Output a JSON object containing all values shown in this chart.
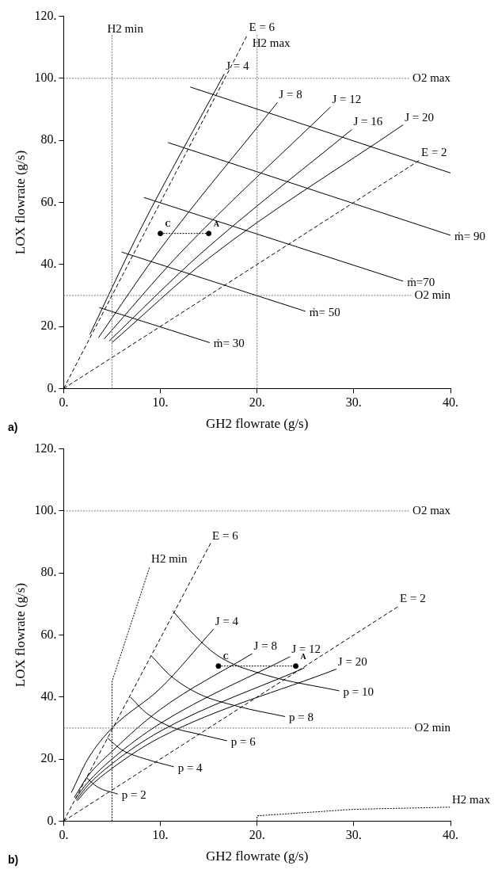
{
  "chart_data": [
    {
      "type": "line",
      "xlabel": "GH2 flowrate (g/s)",
      "ylabel": "LOX flowrate (g/s)",
      "xlim": [
        0,
        40
      ],
      "ylim": [
        0,
        120
      ],
      "xticks": [
        {
          "value": 0,
          "label": "0."
        },
        {
          "value": 10,
          "label": "10."
        },
        {
          "value": 20,
          "label": "20."
        },
        {
          "value": 30,
          "label": "30."
        },
        {
          "value": 40,
          "label": "40."
        }
      ],
      "yticks": [
        {
          "value": 0,
          "label": "0."
        },
        {
          "value": 20,
          "label": "20."
        },
        {
          "value": 40,
          "label": "40."
        },
        {
          "value": 60,
          "label": "60."
        },
        {
          "value": 80,
          "label": "80."
        },
        {
          "value": 100,
          "label": "100."
        },
        {
          "value": 120,
          "label": "120."
        }
      ],
      "marker": "none",
      "series": [
        {
          "name": "E = 6",
          "color": "#000000",
          "line_style": "dashed",
          "x": [
            0,
            19
          ],
          "values": [
            0,
            114
          ]
        },
        {
          "name": "E = 2",
          "color": "#000000",
          "line_style": "dashed",
          "x": [
            0,
            36.8
          ],
          "values": [
            0,
            73.6
          ]
        },
        {
          "name": "J = 4",
          "color": "#000000",
          "line_style": "solid",
          "x": [
            2.7,
            8,
            16.6
          ],
          "values": [
            17.4,
            51.7,
            101.4
          ]
        },
        {
          "name": "J = 8",
          "color": "#000000",
          "line_style": "solid",
          "x": [
            3.6,
            10,
            22.1
          ],
          "values": [
            16.4,
            45,
            92.2
          ]
        },
        {
          "name": "J = 12",
          "color": "#000000",
          "line_style": "solid",
          "x": [
            4.2,
            12,
            27.6
          ],
          "values": [
            16,
            43.5,
            90.8
          ]
        },
        {
          "name": "J = 16",
          "color": "#000000",
          "line_style": "solid",
          "x": [
            4.7,
            14,
            29.8
          ],
          "values": [
            15.3,
            43,
            83.5
          ]
        },
        {
          "name": "J = 20",
          "color": "#000000",
          "line_style": "solid",
          "x": [
            5,
            15,
            35.1
          ],
          "values": [
            14.8,
            42,
            85
          ]
        },
        {
          "name": "ṁ= 30",
          "color": "#000000",
          "line_style": "solid",
          "x": [
            3.7,
            15.1
          ],
          "values": [
            26.1,
            14.8
          ]
        },
        {
          "name": "ṁ= 50",
          "color": "#000000",
          "line_style": "solid",
          "x": [
            6,
            25
          ],
          "values": [
            44,
            24.9
          ]
        },
        {
          "name": "ṁ=70",
          "color": "#000000",
          "line_style": "solid",
          "x": [
            8.3,
            35.1
          ],
          "values": [
            61.6,
            34.6
          ]
        },
        {
          "name": "ṁ= 90",
          "color": "#000000",
          "line_style": "solid",
          "x": [
            10.8,
            40
          ],
          "values": [
            79.3,
            49.4
          ]
        },
        {
          "color": "#000000",
          "line_style": "solid",
          "x": [
            13.1,
            40
          ],
          "values": [
            97.2,
            69.5
          ]
        },
        {
          "color": "#000000",
          "line_style": "dotted",
          "marker": "circle",
          "x": [
            10,
            15
          ],
          "values": [
            50,
            50
          ]
        }
      ],
      "ref_lines": [
        {
          "axis": "x",
          "value": 5,
          "label": "H2 min"
        },
        {
          "axis": "x",
          "value": 20,
          "label": "H2 max"
        },
        {
          "axis": "y",
          "value": 100,
          "label": "O2 max"
        },
        {
          "axis": "y",
          "value": 30,
          "label": "O2 min"
        }
      ],
      "annotations": [
        {
          "text": "C",
          "x": 10,
          "y": 50
        },
        {
          "text": "A",
          "x": 15,
          "y": 50
        },
        "a)"
      ]
    },
    {
      "type": "line",
      "xlabel": "GH2 flowrate (g/s)",
      "ylabel": "LOX flowrate (g/s)",
      "xlim": [
        0,
        40
      ],
      "ylim": [
        0,
        120
      ],
      "xticks": [
        {
          "value": 0,
          "label": "0."
        },
        {
          "value": 10,
          "label": "10."
        },
        {
          "value": 20,
          "label": "20."
        },
        {
          "value": 30,
          "label": "30."
        },
        {
          "value": 40,
          "label": "40."
        }
      ],
      "yticks": [
        {
          "value": 0,
          "label": "0."
        },
        {
          "value": 20,
          "label": "20."
        },
        {
          "value": 40,
          "label": "40."
        },
        {
          "value": 60,
          "label": "60."
        },
        {
          "value": 80,
          "label": "80."
        },
        {
          "value": 100,
          "label": "100."
        },
        {
          "value": 120,
          "label": "120."
        }
      ],
      "marker": "none",
      "series": [
        {
          "name": "E = 6",
          "color": "#000000",
          "line_style": "dashed",
          "x": [
            0,
            15.2
          ],
          "values": [
            0,
            89.6
          ]
        },
        {
          "name": "E = 2",
          "color": "#000000",
          "line_style": "dashed",
          "x": [
            0,
            34.6
          ],
          "values": [
            0,
            69.2
          ]
        },
        {
          "name": "H2 min",
          "color": "#000000",
          "line_style": "dotted",
          "x": [
            5,
            5,
            8.9
          ],
          "values": [
            0,
            45,
            82
          ]
        },
        {
          "name": "H2 max",
          "color": "#000000",
          "line_style": "dotted",
          "x": [
            20,
            20,
            30,
            40
          ],
          "values": [
            0,
            1.7,
            3.8,
            4.5
          ]
        },
        {
          "name": "J = 4",
          "color": "#000000",
          "line_style": "solid",
          "x": [
            0.8,
            2.5,
            5,
            10,
            15.5
          ],
          "values": [
            9.2,
            20,
            30,
            42.8,
            61.9
          ]
        },
        {
          "name": "J = 8",
          "color": "#000000",
          "line_style": "solid",
          "x": [
            1.1,
            2.5,
            5,
            10,
            19.5
          ],
          "values": [
            7.6,
            14.5,
            22.5,
            36,
            54
          ]
        },
        {
          "name": "J = 12",
          "color": "#000000",
          "line_style": "solid",
          "x": [
            1.2,
            2.5,
            5,
            10,
            23.4
          ],
          "values": [
            7.2,
            12.5,
            20,
            31.5,
            53
          ]
        },
        {
          "color": "#000000",
          "line_style": "solid",
          "x": [
            1.3,
            2.5,
            5,
            10,
            24.9
          ],
          "values": [
            6.8,
            11.5,
            18.5,
            29,
            49.4
          ]
        },
        {
          "name": "J = 20",
          "color": "#000000",
          "line_style": "solid",
          "x": [
            1.4,
            2.5,
            5,
            10,
            28.2
          ],
          "values": [
            6.5,
            10.5,
            17,
            27,
            49
          ]
        },
        {
          "name": "p = 2",
          "color": "#000000",
          "line_style": "solid",
          "x": [
            2.4,
            3.5,
            5.6
          ],
          "values": [
            13.9,
            11,
            8.7
          ]
        },
        {
          "name": "p = 4",
          "color": "#000000",
          "line_style": "solid",
          "x": [
            4.5,
            6,
            8.5,
            11.4
          ],
          "values": [
            26.9,
            23,
            20,
            17.5
          ]
        },
        {
          "name": "p = 6",
          "color": "#000000",
          "line_style": "solid",
          "x": [
            6.9,
            8.5,
            11,
            14,
            16.9
          ],
          "values": [
            40,
            35,
            30.5,
            28,
            25.9
          ]
        },
        {
          "name": "p = 8",
          "color": "#000000",
          "line_style": "solid",
          "x": [
            9.1,
            11,
            14,
            18,
            22.9
          ],
          "values": [
            53.2,
            47,
            41,
            37,
            33.7
          ]
        },
        {
          "name": "p = 10",
          "color": "#000000",
          "line_style": "solid",
          "x": [
            11.3,
            13.5,
            16.1,
            21,
            28.5
          ],
          "values": [
            67.7,
            60,
            53,
            47,
            42
          ]
        },
        {
          "color": "#000000",
          "line_style": "dotted",
          "marker": "circle",
          "x": [
            16,
            24
          ],
          "values": [
            50,
            50
          ]
        }
      ],
      "ref_lines": [
        {
          "axis": "y",
          "value": 100,
          "label": "O2 max"
        },
        {
          "axis": "y",
          "value": 30,
          "label": "O2 min"
        }
      ],
      "annotations": [
        {
          "text": "C",
          "x": 16,
          "y": 50
        },
        {
          "text": "A",
          "x": 24,
          "y": 50
        },
        "b)"
      ]
    }
  ]
}
